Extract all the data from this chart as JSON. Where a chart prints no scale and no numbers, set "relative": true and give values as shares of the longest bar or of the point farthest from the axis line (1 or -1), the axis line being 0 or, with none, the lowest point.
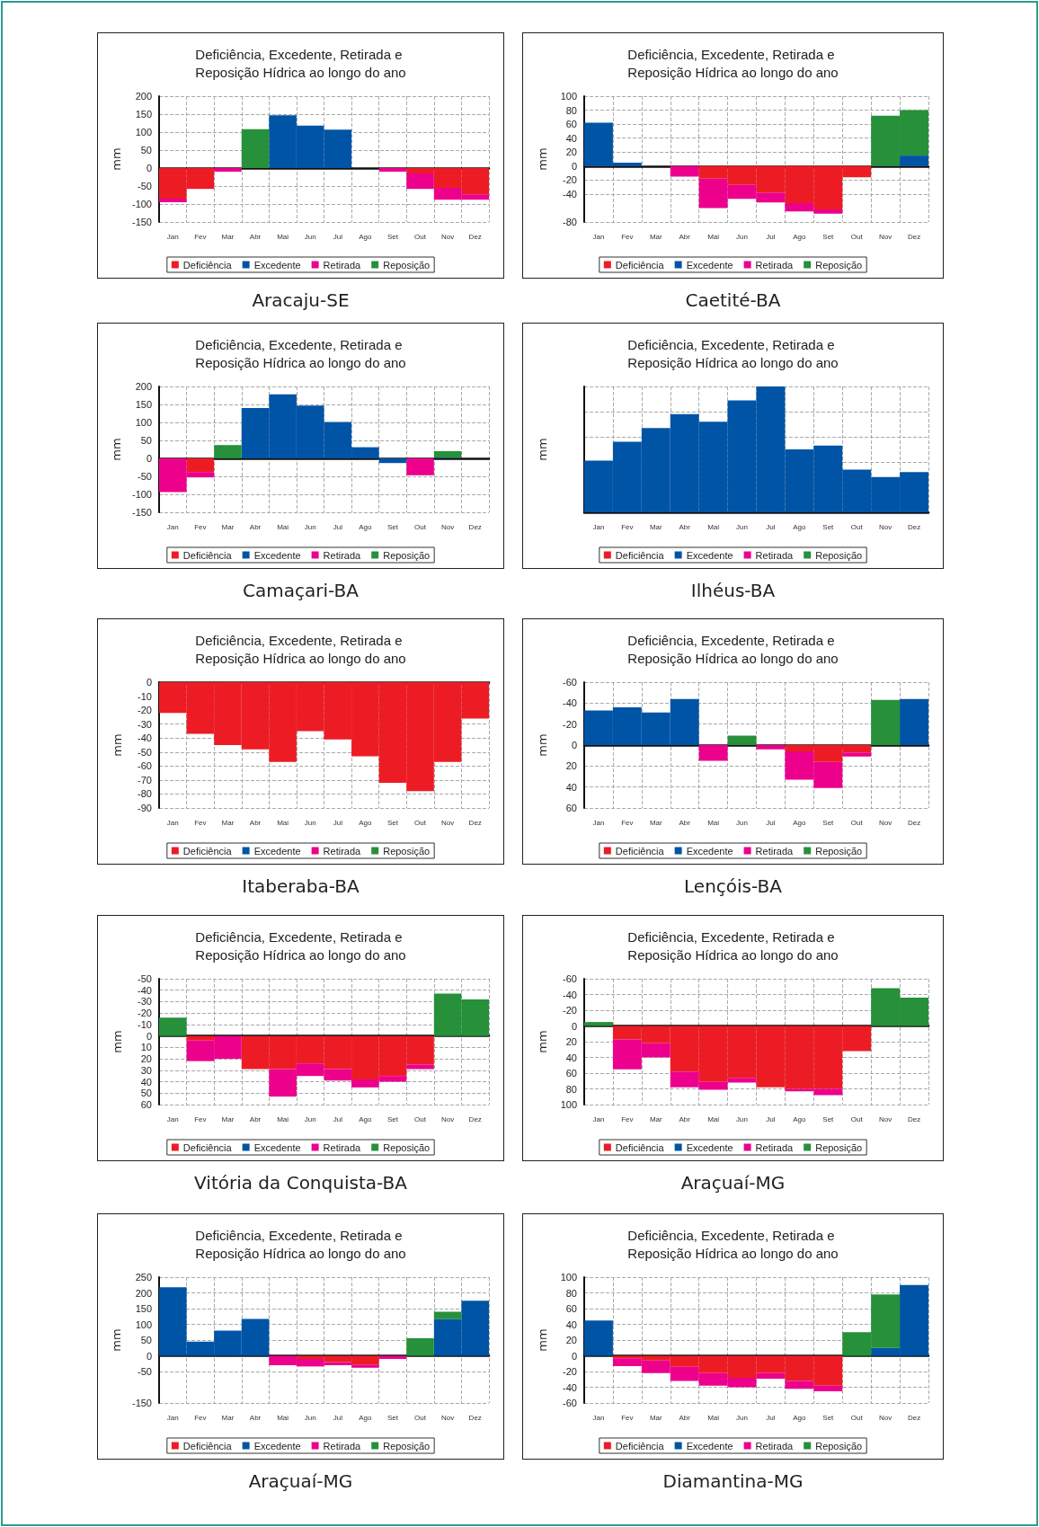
{
  "chart_data": [
    {
      "type": "bar",
      "stacked": true,
      "title": "Deficiência, Excedente, Retirada e Reposição Hídrica ao longo do ano",
      "ylabel": "mm",
      "categories": [
        "Jan",
        "Fev",
        "Mar",
        "Abr",
        "Mai",
        "Jun",
        "Jul",
        "Ago",
        "Set",
        "Out",
        "Nov",
        "Dez"
      ],
      "series": [
        {
          "name": "Deficiência",
          "color": "#ed1c24",
          "values": [
            -85,
            -58,
            null,
            null,
            null,
            null,
            null,
            null,
            null,
            -15,
            -55,
            -73
          ]
        },
        {
          "name": "Excedente",
          "color": "#0054a6",
          "values": [
            null,
            null,
            null,
            null,
            147,
            118,
            107,
            null,
            null,
            null,
            null,
            null
          ]
        },
        {
          "name": "Retirada",
          "color": "#ec008c",
          "values": [
            -10,
            null,
            -10,
            null,
            null,
            null,
            null,
            null,
            -10,
            -43,
            -33,
            -15
          ]
        },
        {
          "name": "Reposição",
          "color": "#26903a",
          "values": [
            null,
            null,
            null,
            108,
            null,
            null,
            null,
            null,
            null,
            null,
            null,
            null
          ]
        }
      ],
      "ylim": [
        -150,
        200
      ],
      "yticks": [
        -150,
        -100,
        -50,
        0,
        50,
        100,
        150,
        200
      ],
      "grid": true,
      "legend": "bottom",
      "annotations": [
        "Aracaju-SE"
      ]
    },
    {
      "type": "bar",
      "stacked": true,
      "title": "Deficiência, Excedente, Retirada e Reposição Hídrica ao longo do ano",
      "ylabel": "mm",
      "categories": [
        "Jan",
        "Fev",
        "Mar",
        "Abr",
        "Mai",
        "Jun",
        "Jul",
        "Ago",
        "Set",
        "Out",
        "Nov",
        "Dez"
      ],
      "series": [
        {
          "name": "Deficiência",
          "color": "#ed1c24",
          "values": [
            null,
            null,
            null,
            null,
            -18,
            -27,
            -38,
            -53,
            -62,
            -16,
            null,
            null
          ]
        },
        {
          "name": "Excedente",
          "color": "#0054a6",
          "values": [
            62,
            5,
            null,
            null,
            null,
            null,
            null,
            null,
            null,
            null,
            null,
            15
          ]
        },
        {
          "name": "Retirada",
          "color": "#ec008c",
          "values": [
            null,
            null,
            null,
            -15,
            -42,
            -20,
            -14,
            -12,
            -6,
            null,
            null,
            null
          ]
        },
        {
          "name": "Reposição",
          "color": "#26903a",
          "values": [
            null,
            null,
            null,
            null,
            null,
            null,
            null,
            null,
            null,
            null,
            72,
            65
          ]
        }
      ],
      "ylim": [
        -80,
        100
      ],
      "yticks": [
        -80,
        -40,
        -20,
        0,
        20,
        40,
        60,
        80,
        100
      ],
      "grid": true,
      "legend": "bottom",
      "annotations": [
        "Caetité-BA"
      ]
    },
    {
      "type": "bar",
      "stacked": true,
      "title": "Deficiência, Excedente, Retirada e Reposição Hídrica ao longo do ano",
      "ylabel": "mm",
      "categories": [
        "Jan",
        "Fev",
        "Mar",
        "Abr",
        "Mai",
        "Jun",
        "Jul",
        "Ago",
        "Set",
        "Out",
        "Nov",
        "Dez"
      ],
      "series": [
        {
          "name": "Deficiência",
          "color": "#ed1c24",
          "values": [
            null,
            -38,
            null,
            null,
            null,
            null,
            null,
            null,
            null,
            null,
            null,
            null
          ]
        },
        {
          "name": "Excedente",
          "color": "#0054a6",
          "values": [
            null,
            null,
            null,
            140,
            178,
            147,
            101,
            31,
            -13,
            null,
            2,
            null
          ]
        },
        {
          "name": "Retirada",
          "color": "#ec008c",
          "values": [
            -94,
            -15,
            null,
            null,
            null,
            null,
            null,
            null,
            null,
            -47,
            null,
            null
          ]
        },
        {
          "name": "Reposição",
          "color": "#26903a",
          "values": [
            null,
            null,
            37,
            null,
            null,
            null,
            null,
            null,
            null,
            null,
            18,
            null
          ]
        }
      ],
      "ylim": [
        -150,
        200
      ],
      "yticks": [
        -150,
        -100,
        -50,
        0,
        50,
        100,
        150,
        200
      ],
      "grid": true,
      "legend": "bottom",
      "annotations": [
        "Camaçari-BA"
      ]
    },
    {
      "type": "bar",
      "stacked": true,
      "relative": true,
      "title": "Deficiência, Excedente, Retirada e Reposição Hídrica ao longo do ano",
      "ylabel": "mm",
      "categories": [
        "Jan",
        "Fev",
        "Mar",
        "Abr",
        "Mai",
        "Jun",
        "Jul",
        "Ago",
        "Set",
        "Out",
        "Nov",
        "Dez"
      ],
      "series": [
        {
          "name": "Deficiência",
          "color": "#ed1c24",
          "values": [
            null,
            null,
            null,
            null,
            null,
            null,
            null,
            null,
            null,
            null,
            null,
            null
          ]
        },
        {
          "name": "Excedente",
          "color": "#0054a6",
          "values": [
            0.41,
            0.56,
            0.67,
            0.78,
            0.72,
            0.89,
            1,
            0.5,
            0.53,
            0.34,
            0.28,
            0.32
          ]
        },
        {
          "name": "Retirada",
          "color": "#ec008c",
          "values": [
            null,
            null,
            null,
            null,
            null,
            null,
            null,
            null,
            null,
            null,
            null,
            null
          ]
        },
        {
          "name": "Reposição",
          "color": "#26903a",
          "values": [
            null,
            null,
            null,
            null,
            null,
            null,
            null,
            null,
            null,
            null,
            null,
            null
          ]
        }
      ],
      "grid": true,
      "legend": "bottom",
      "annotations": [
        "Ilhéus-BA"
      ]
    },
    {
      "type": "bar",
      "stacked": true,
      "title": "Deficiência, Excedente, Retirada e Reposição Hídrica ao longo do ano",
      "ylabel": "mm",
      "categories": [
        "Jan",
        "Fev",
        "Mar",
        "Abr",
        "Mai",
        "Jun",
        "Jul",
        "Ago",
        "Set",
        "Out",
        "Nov",
        "Dez"
      ],
      "series": [
        {
          "name": "Deficiência",
          "color": "#ed1c24",
          "values": [
            -22,
            -37,
            -45,
            -48,
            -57,
            -35,
            -41,
            -53,
            -72,
            -78,
            -57,
            -26
          ]
        },
        {
          "name": "Excedente",
          "color": "#0054a6",
          "values": [
            null,
            null,
            null,
            null,
            null,
            null,
            null,
            null,
            null,
            null,
            null,
            null
          ]
        },
        {
          "name": "Retirada",
          "color": "#ec008c",
          "values": [
            null,
            null,
            null,
            null,
            null,
            null,
            null,
            null,
            null,
            null,
            null,
            null
          ]
        },
        {
          "name": "Reposição",
          "color": "#26903a",
          "values": [
            null,
            null,
            null,
            null,
            null,
            null,
            null,
            null,
            null,
            null,
            null,
            null
          ]
        }
      ],
      "ylim": [
        -90,
        0
      ],
      "yticks": [
        -90,
        -80,
        -70,
        -60,
        -50,
        -40,
        -30,
        -20,
        -10,
        0
      ],
      "grid": true,
      "legend": "bottom",
      "annotations": [
        "Itaberaba-BA"
      ]
    },
    {
      "type": "bar",
      "stacked": true,
      "title": "Deficiência, Excedente, Retirada e Reposição Hídrica ao longo do ano",
      "ylabel": "mm",
      "categories": [
        "Jan",
        "Fev",
        "Mar",
        "Abr",
        "Mai",
        "Jun",
        "Jul",
        "Ago",
        "Set",
        "Out",
        "Nov",
        "Dez"
      ],
      "series": [
        {
          "name": "Deficiência",
          "color": "#ed1c24",
          "values": [
            null,
            null,
            null,
            null,
            null,
            null,
            null,
            6,
            16,
            7,
            null,
            null
          ]
        },
        {
          "name": "Excedente",
          "color": "#0054a6",
          "values": [
            -33,
            -36,
            -31,
            -44,
            null,
            null,
            null,
            null,
            null,
            null,
            null,
            -44
          ]
        },
        {
          "name": "Retirada",
          "color": "#ec008c",
          "values": [
            null,
            null,
            null,
            null,
            15,
            null,
            4,
            27,
            25,
            4,
            null,
            null
          ]
        },
        {
          "name": "Reposição",
          "color": "#26903a",
          "values": [
            null,
            null,
            null,
            null,
            null,
            -9,
            null,
            null,
            null,
            null,
            -43,
            null
          ]
        }
      ],
      "ylim": [
        60,
        -60
      ],
      "yticks": [
        -60,
        -40,
        -20,
        0,
        20,
        40,
        60
      ],
      "grid": true,
      "legend": "bottom",
      "annotations": [
        "Lençóis-BA"
      ]
    },
    {
      "type": "bar",
      "stacked": true,
      "title": "Deficiência, Excedente, Retirada e Reposição Hídrica ao longo do ano",
      "ylabel": "mm",
      "categories": [
        "Jan",
        "Fev",
        "Mar",
        "Abr",
        "Mai",
        "Jun",
        "Jul",
        "Ago",
        "Set",
        "Out",
        "Nov",
        "Dez"
      ],
      "series": [
        {
          "name": "Deficiência",
          "color": "#ed1c24",
          "values": [
            null,
            4,
            null,
            29,
            29,
            24,
            29,
            38,
            35,
            25,
            null,
            null
          ]
        },
        {
          "name": "Excedente",
          "color": "#0054a6",
          "values": [
            null,
            null,
            null,
            null,
            null,
            null,
            null,
            null,
            null,
            null,
            null,
            null
          ]
        },
        {
          "name": "Retirada",
          "color": "#ec008c",
          "values": [
            null,
            18,
            20,
            null,
            24,
            11,
            10,
            7,
            5,
            4,
            null,
            null
          ]
        },
        {
          "name": "Reposição",
          "color": "#26903a",
          "values": [
            -16,
            null,
            null,
            null,
            null,
            null,
            null,
            null,
            null,
            null,
            -37,
            -32
          ]
        }
      ],
      "ylim": [
        60,
        -50
      ],
      "yticks": [
        -50,
        -40,
        -30,
        -20,
        -10,
        0,
        10,
        20,
        30,
        40,
        50,
        60
      ],
      "grid": true,
      "legend": "bottom",
      "annotations": [
        "Vitória da Conquista-BA"
      ]
    },
    {
      "type": "bar",
      "stacked": true,
      "title": "Deficiência, Excedente, Retirada e Reposição Hídrica ao longo do ano",
      "ylabel": "mm",
      "categories": [
        "Jan",
        "Fev",
        "Mar",
        "Abr",
        "Mai",
        "Jun",
        "Jul",
        "Ago",
        "Set",
        "Out",
        "Nov",
        "Dez"
      ],
      "series": [
        {
          "name": "Deficiência",
          "color": "#ed1c24",
          "values": [
            null,
            17,
            22,
            58,
            71,
            66,
            78,
            80,
            80,
            32,
            null,
            null
          ]
        },
        {
          "name": "Excedente",
          "color": "#0054a6",
          "values": [
            null,
            null,
            null,
            null,
            null,
            null,
            null,
            null,
            null,
            null,
            null,
            null
          ]
        },
        {
          "name": "Retirada",
          "color": "#ec008c",
          "values": [
            null,
            38,
            18,
            20,
            10,
            6,
            null,
            3,
            8,
            null,
            null,
            null
          ]
        },
        {
          "name": "Reposição",
          "color": "#26903a",
          "values": [
            -5,
            null,
            null,
            null,
            null,
            null,
            null,
            null,
            null,
            null,
            -48,
            -36
          ]
        }
      ],
      "ylim": [
        100,
        -60
      ],
      "yticks": [
        -60,
        -40,
        -20,
        0,
        20,
        40,
        60,
        80,
        100
      ],
      "grid": true,
      "legend": "bottom",
      "annotations": [
        "Araçuaí-MG"
      ]
    },
    {
      "type": "bar",
      "stacked": true,
      "title": "Deficiência, Excedente, Retirada e Reposição Hídrica ao longo do ano",
      "ylabel": "mm",
      "categories": [
        "Jan",
        "Fev",
        "Mar",
        "Abr",
        "Mai",
        "Jun",
        "Jul",
        "Ago",
        "Set",
        "Out",
        "Nov",
        "Dez"
      ],
      "series": [
        {
          "name": "Deficiência",
          "color": "#ed1c24",
          "values": [
            null,
            null,
            null,
            null,
            null,
            -10,
            -20,
            -28,
            null,
            null,
            null,
            null
          ]
        },
        {
          "name": "Excedente",
          "color": "#0054a6",
          "values": [
            218,
            45,
            80,
            117,
            null,
            null,
            null,
            null,
            null,
            null,
            117,
            175
          ]
        },
        {
          "name": "Retirada",
          "color": "#ec008c",
          "values": [
            null,
            null,
            null,
            null,
            -30,
            -24,
            -10,
            -10,
            -10,
            null,
            null,
            null
          ]
        },
        {
          "name": "Reposição",
          "color": "#26903a",
          "values": [
            null,
            null,
            null,
            null,
            null,
            null,
            null,
            null,
            null,
            56,
            23,
            null
          ]
        }
      ],
      "ylim": [
        -150,
        250
      ],
      "yticks": [
        -150,
        -50,
        0,
        50,
        100,
        150,
        200,
        250
      ],
      "grid": true,
      "legend": "bottom",
      "annotations": [
        "Araçuaí-MG"
      ]
    },
    {
      "type": "bar",
      "stacked": true,
      "title": "Deficiência, Excedente, Retirada e Reposição Hídrica ao longo do ano",
      "ylabel": "mm",
      "categories": [
        "Jan",
        "Fev",
        "Mar",
        "Abr",
        "Mai",
        "Jun",
        "Jul",
        "Ago",
        "Set",
        "Out",
        "Nov",
        "Dez"
      ],
      "series": [
        {
          "name": "Deficiência",
          "color": "#ed1c24",
          "values": [
            null,
            -3,
            -6,
            -14,
            -22,
            -28,
            -22,
            -32,
            -38,
            null,
            null,
            null
          ]
        },
        {
          "name": "Excedente",
          "color": "#0054a6",
          "values": [
            45,
            null,
            null,
            null,
            null,
            null,
            null,
            null,
            null,
            null,
            10,
            90
          ]
        },
        {
          "name": "Retirada",
          "color": "#ec008c",
          "values": [
            null,
            -10,
            -16,
            -18,
            -16,
            -12,
            -7,
            -10,
            -7,
            null,
            null,
            null
          ]
        },
        {
          "name": "Reposição",
          "color": "#26903a",
          "values": [
            null,
            null,
            null,
            null,
            null,
            null,
            null,
            null,
            null,
            30,
            68,
            null
          ]
        }
      ],
      "ylim": [
        -60,
        100
      ],
      "yticks": [
        -60,
        -40,
        -20,
        0,
        20,
        40,
        60,
        80,
        100
      ],
      "grid": true,
      "legend": "bottom",
      "annotations": [
        "Diamantina-MG"
      ]
    }
  ]
}
